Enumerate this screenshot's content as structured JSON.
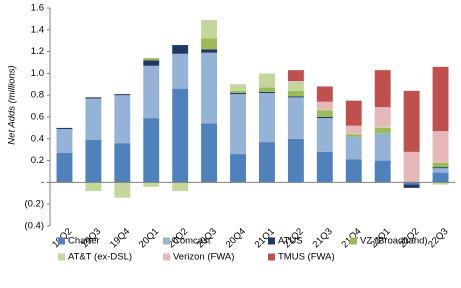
{
  "chart_data": {
    "type": "stacked-bar",
    "y_label": "Net Adds (millions)",
    "categories": [
      "19Q2",
      "19Q3",
      "19Q4",
      "20Q1",
      "20Q2",
      "20Q3",
      "20Q4",
      "21Q1",
      "21Q2",
      "21Q3",
      "21Q4",
      "22Q1",
      "22Q2",
      "22Q3"
    ],
    "series": [
      {
        "name": "Charter",
        "color": "#4f81bd",
        "values": [
          0.27,
          0.39,
          0.36,
          0.59,
          0.86,
          0.54,
          0.26,
          0.37,
          0.4,
          0.28,
          0.21,
          0.2,
          -0.02,
          0.09
        ]
      },
      {
        "name": "Comcast",
        "color": "#95b3d7",
        "values": [
          0.22,
          0.38,
          0.44,
          0.48,
          0.32,
          0.65,
          0.55,
          0.45,
          0.38,
          0.31,
          0.21,
          0.25,
          0,
          0.04
        ]
      },
      {
        "name": "ATUS",
        "color": "#1f3864",
        "values": [
          0.01,
          0.01,
          0.01,
          0.05,
          0.08,
          0.03,
          0.01,
          0.01,
          0.01,
          0.01,
          0,
          0,
          -0.03,
          0.01
        ]
      },
      {
        "name": "VZ (Broadband)",
        "color": "#9bbb59",
        "values": [
          0,
          0,
          0,
          0.02,
          0,
          0.1,
          0.02,
          0.04,
          0.05,
          0.06,
          0.02,
          0.05,
          0.01,
          0.04
        ]
      },
      {
        "name": "AT&T (ex-DSL)",
        "color": "#c3d69b",
        "values": [
          0,
          -0.08,
          -0.14,
          -0.04,
          -0.08,
          0.17,
          0.06,
          0.13,
          0.08,
          0.01,
          0.01,
          0.01,
          0,
          -0.02
        ]
      },
      {
        "name": "Verizon (FWA)",
        "color": "#e6b9b8",
        "values": [
          0,
          0,
          0,
          0,
          0,
          0,
          0,
          0,
          0.01,
          0.07,
          0.07,
          0.18,
          0.27,
          0.29
        ]
      },
      {
        "name": "TMUS (FWA)",
        "color": "#c0504d",
        "values": [
          0,
          0,
          0,
          0,
          0,
          0,
          0,
          0,
          0.1,
          0.14,
          0.23,
          0.34,
          0.56,
          0.59
        ]
      }
    ],
    "ylim": [
      -0.4,
      1.6
    ],
    "yticks": [
      {
        "value": -0.4,
        "label": "(0.4)"
      },
      {
        "value": -0.2,
        "label": "(0.2)"
      },
      {
        "value": 0,
        "label": "-"
      },
      0.2,
      0.4,
      0.6,
      0.8,
      {
        "value": 1,
        "label": "1.0"
      },
      1.2,
      1.4,
      1.6
    ],
    "grid": false,
    "legend": "bottom"
  }
}
